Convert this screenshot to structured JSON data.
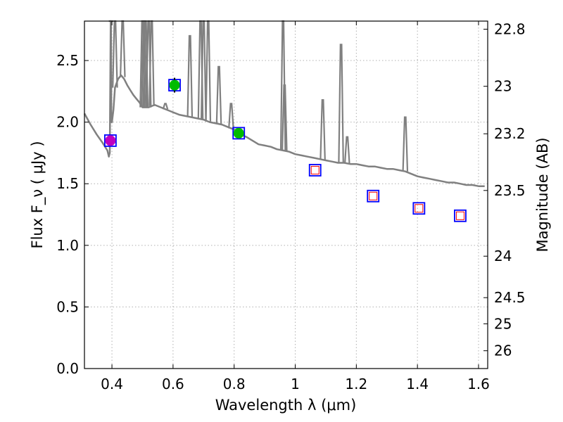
{
  "chart_data": {
    "type": "scatter",
    "title": "",
    "xlabel": "Wavelength  λ (μm)",
    "ylabel": "Flux  F_ν  ( μJy )",
    "y2label": "Magnitude (AB)",
    "xlim": [
      0.31,
      1.63
    ],
    "ylim": [
      0.0,
      2.82
    ],
    "grid": true,
    "xticks": [
      0.4,
      0.6,
      0.8,
      1.0,
      1.2,
      1.4,
      1.6
    ],
    "xtick_labels": [
      "0.4",
      "0.6",
      "0.8",
      "1",
      "1.2",
      "1.4",
      "1.6"
    ],
    "yticks": [
      0.0,
      0.5,
      1.0,
      1.5,
      2.0,
      2.5
    ],
    "ytick_labels": [
      "0.0",
      "0.5",
      "1.0",
      "1.5",
      "2.0",
      "2.5"
    ],
    "y2ticks": [
      22.8,
      23,
      23.2,
      23.5,
      24,
      24.5,
      25,
      26
    ],
    "y2tick_labels": [
      "22.8",
      "23",
      "23.2",
      "23.5",
      "24",
      "24.5",
      "25",
      "26"
    ],
    "series": [
      {
        "name": "model-spectrum",
        "kind": "line",
        "color": "#808080",
        "x": [
          0.31,
          0.33,
          0.35,
          0.37,
          0.385,
          0.39,
          0.393,
          0.396,
          0.397,
          0.398,
          0.4,
          0.405,
          0.41,
          0.42,
          0.43,
          0.44,
          0.45,
          0.46,
          0.47,
          0.48,
          0.49,
          0.5,
          0.52,
          0.54,
          0.56,
          0.58,
          0.6,
          0.62,
          0.64,
          0.66,
          0.68,
          0.7,
          0.72,
          0.74,
          0.76,
          0.78,
          0.8,
          0.82,
          0.84,
          0.86,
          0.88,
          0.9,
          0.92,
          0.94,
          0.96,
          0.98,
          1.0,
          1.02,
          1.04,
          1.06,
          1.08,
          1.1,
          1.12,
          1.14,
          1.16,
          1.18,
          1.2,
          1.22,
          1.24,
          1.26,
          1.28,
          1.3,
          1.32,
          1.34,
          1.36,
          1.38,
          1.4,
          1.42,
          1.44,
          1.46,
          1.48,
          1.5,
          1.52,
          1.54,
          1.56,
          1.58,
          1.6,
          1.62
        ],
        "y": [
          2.07,
          1.98,
          1.9,
          1.83,
          1.77,
          1.72,
          1.75,
          2.82,
          2.82,
          2.0,
          2.0,
          2.1,
          2.28,
          2.35,
          2.38,
          2.35,
          2.3,
          2.26,
          2.22,
          2.19,
          2.16,
          2.12,
          2.12,
          2.14,
          2.12,
          2.1,
          2.08,
          2.06,
          2.05,
          2.04,
          2.03,
          2.02,
          2.0,
          1.99,
          1.98,
          1.96,
          1.94,
          1.9,
          1.88,
          1.85,
          1.82,
          1.81,
          1.8,
          1.78,
          1.77,
          1.76,
          1.74,
          1.73,
          1.72,
          1.71,
          1.7,
          1.69,
          1.68,
          1.67,
          1.67,
          1.66,
          1.66,
          1.65,
          1.64,
          1.64,
          1.63,
          1.62,
          1.62,
          1.61,
          1.6,
          1.58,
          1.56,
          1.55,
          1.54,
          1.53,
          1.52,
          1.51,
          1.51,
          1.5,
          1.49,
          1.49,
          1.48,
          1.48
        ]
      },
      {
        "name": "emission-lines",
        "kind": "spikes",
        "color": "#808080",
        "x": [
          0.397,
          0.41,
          0.435,
          0.5,
          0.505,
          0.51,
          0.52,
          0.53,
          0.575,
          0.655,
          0.69,
          0.7,
          0.715,
          0.75,
          0.79,
          0.96,
          0.965,
          1.09,
          1.15,
          1.17,
          1.36
        ],
        "y": [
          2.82,
          2.82,
          2.82,
          2.82,
          2.82,
          2.82,
          2.82,
          2.82,
          2.15,
          2.7,
          2.82,
          2.82,
          2.82,
          2.45,
          2.15,
          2.82,
          2.3,
          2.18,
          2.63,
          1.88,
          2.04
        ]
      },
      {
        "name": "model-photometry",
        "kind": "open-square",
        "color": "#0000ff",
        "x": [
          0.395,
          0.605,
          0.815,
          1.065,
          1.255,
          1.405,
          1.54
        ],
        "y": [
          1.85,
          2.3,
          1.91,
          1.61,
          1.4,
          1.3,
          1.24
        ]
      },
      {
        "name": "upper-limits",
        "kind": "small-square",
        "color": "#ff0000",
        "x": [
          1.065,
          1.255,
          1.405,
          1.54
        ],
        "y": [
          1.61,
          1.4,
          1.3,
          1.24
        ]
      },
      {
        "name": "measured-green",
        "kind": "filled-circle",
        "color": "#00bb00",
        "x": [
          0.605,
          0.815
        ],
        "y": [
          2.3,
          1.91
        ],
        "err": [
          0.06,
          0.04
        ]
      },
      {
        "name": "measured-magenta",
        "kind": "filled-circle",
        "color": "#bf00bf",
        "x": [
          0.395
        ],
        "y": [
          1.85
        ],
        "err": [
          0.03
        ]
      }
    ]
  }
}
